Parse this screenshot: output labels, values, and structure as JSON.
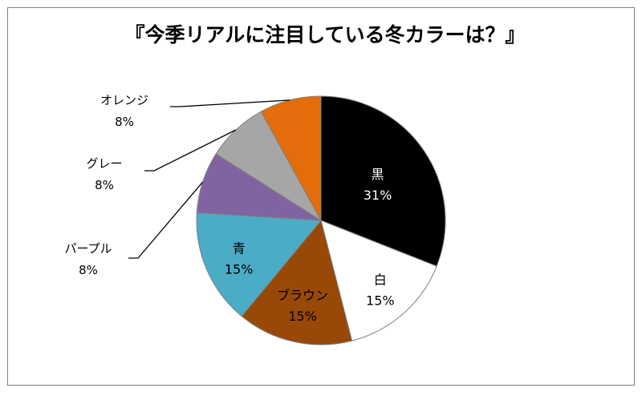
{
  "chart_data": {
    "type": "pie",
    "title": "『今季リアルに注目している冬カラーは？』",
    "slices": [
      {
        "label": "黒",
        "value": 31,
        "display": "31%",
        "color": "#000000",
        "label_color": "#ffffff"
      },
      {
        "label": "白",
        "value": 15,
        "display": "15%",
        "color": "#ffffff",
        "label_color": "#000000"
      },
      {
        "label": "ブラウン",
        "value": 15,
        "display": "15%",
        "color": "#984807",
        "label_color": "#000000"
      },
      {
        "label": "青",
        "value": 15,
        "display": "15%",
        "color": "#4bacc6",
        "label_color": "#000000"
      },
      {
        "label": "パープル",
        "value": 8,
        "display": "8%",
        "color": "#8064a2",
        "label_color": "#000000"
      },
      {
        "label": "グレー",
        "value": 8,
        "display": "8%",
        "color": "#a6a6a6",
        "label_color": "#000000"
      },
      {
        "label": "オレンジ",
        "value": 8,
        "display": "8%",
        "color": "#e46c0a",
        "label_color": "#000000"
      }
    ],
    "start_angle": "12 o'clock",
    "direction": "clockwise",
    "legend": "none"
  }
}
